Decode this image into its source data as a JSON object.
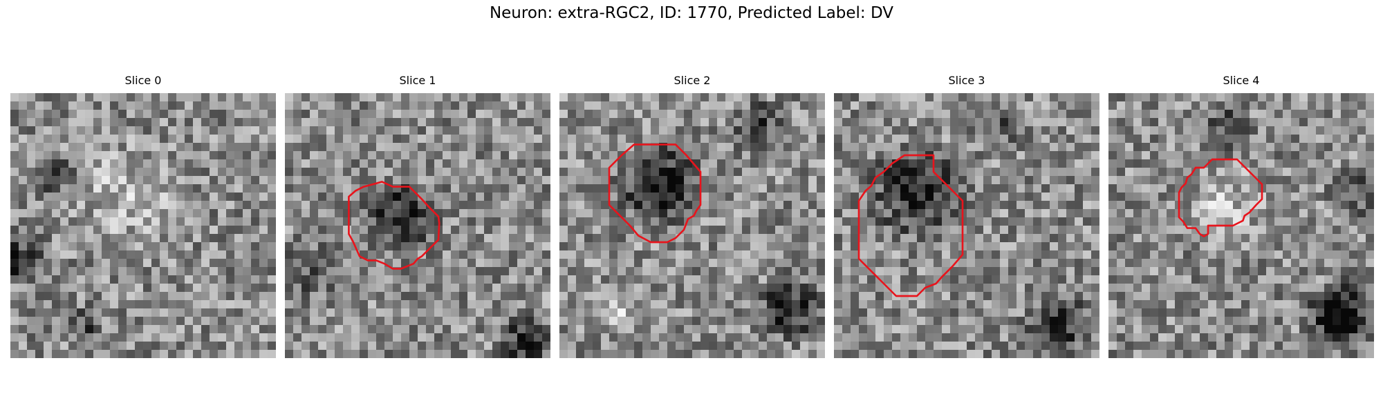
{
  "figure": {
    "title": "Neuron: extra-RGC2, ID: 1770, Predicted Label: DV"
  },
  "panels": [
    {
      "title": "Slice 0",
      "has_contour": false,
      "contour": []
    },
    {
      "title": "Slice 1",
      "has_contour": true,
      "contour": [
        [
          11.7,
          10.7
        ],
        [
          13,
          11.3
        ],
        [
          15,
          11.3
        ],
        [
          16.4,
          12.7
        ],
        [
          17.5,
          13.9
        ],
        [
          18.5,
          14.9
        ],
        [
          18.6,
          15.7
        ],
        [
          18.5,
          17.7
        ],
        [
          17.5,
          18.7
        ],
        [
          16.5,
          19.7
        ],
        [
          16,
          20
        ],
        [
          15.5,
          20.6
        ],
        [
          14,
          21.2
        ],
        [
          13,
          21.2
        ],
        [
          12,
          20.6
        ],
        [
          11,
          20.2
        ],
        [
          10,
          20.2
        ],
        [
          9,
          19.7
        ],
        [
          8.6,
          18.8
        ],
        [
          8.2,
          17.9
        ],
        [
          7.7,
          17
        ],
        [
          7.7,
          14.5
        ],
        [
          7.7,
          12.5
        ],
        [
          8.5,
          11.8
        ],
        [
          9.5,
          11.3
        ],
        [
          11,
          10.9
        ]
      ]
    },
    {
      "title": "Slice 2",
      "has_contour": true,
      "contour": [
        [
          9,
          6.2
        ],
        [
          14,
          6.2
        ],
        [
          15.3,
          7.5
        ],
        [
          17,
          9.5
        ],
        [
          17,
          13.5
        ],
        [
          16.5,
          14.2
        ],
        [
          16.2,
          14.8
        ],
        [
          15.5,
          15.2
        ],
        [
          15,
          16.5
        ],
        [
          14,
          17.5
        ],
        [
          13,
          18
        ],
        [
          11,
          18
        ],
        [
          9.5,
          17.2
        ],
        [
          8.5,
          16
        ],
        [
          7.2,
          14.7
        ],
        [
          6,
          13.5
        ],
        [
          6,
          9
        ],
        [
          7.5,
          7.5
        ]
      ]
    },
    {
      "title": "Slice 3",
      "has_contour": true,
      "contour": [
        [
          12,
          9.5
        ],
        [
          13.5,
          11
        ],
        [
          15.5,
          13
        ],
        [
          15.5,
          16.5
        ],
        [
          15.5,
          19.5
        ],
        [
          14.3,
          20.9
        ],
        [
          13,
          22.2
        ],
        [
          12.3,
          23
        ],
        [
          11,
          23.5
        ],
        [
          10,
          24.5
        ],
        [
          7.5,
          24.5
        ],
        [
          5.5,
          22.5
        ],
        [
          3,
          20
        ],
        [
          3,
          13
        ],
        [
          3.8,
          11.8
        ],
        [
          4.5,
          11.2
        ],
        [
          5,
          10.2
        ],
        [
          6,
          9.5
        ],
        [
          7,
          8.5
        ],
        [
          8.5,
          7.5
        ],
        [
          12,
          7.5
        ]
      ]
    },
    {
      "title": "Slice 4",
      "has_contour": true,
      "contour": [
        [
          12,
          16
        ],
        [
          15,
          16
        ],
        [
          16.2,
          15.4
        ],
        [
          16.4,
          14.8
        ],
        [
          17,
          14.4
        ],
        [
          17.8,
          13.5
        ],
        [
          18.5,
          12.8
        ],
        [
          18.5,
          11
        ],
        [
          17.5,
          10
        ],
        [
          15.5,
          8
        ],
        [
          12.5,
          8
        ],
        [
          11.5,
          9
        ],
        [
          10.5,
          9
        ],
        [
          10,
          9.8
        ],
        [
          9.5,
          10.2
        ],
        [
          9.3,
          10.9
        ],
        [
          8.8,
          11.4
        ],
        [
          8.5,
          12
        ],
        [
          8.5,
          15
        ],
        [
          9,
          15.5
        ],
        [
          9.5,
          16.3
        ],
        [
          10.5,
          16.3
        ],
        [
          11,
          17
        ],
        [
          11.5,
          17.3
        ],
        [
          12,
          17
        ],
        [
          12,
          16
        ]
      ]
    }
  ],
  "colors": {
    "contour": "#e8141c",
    "background": "#ffffff"
  }
}
